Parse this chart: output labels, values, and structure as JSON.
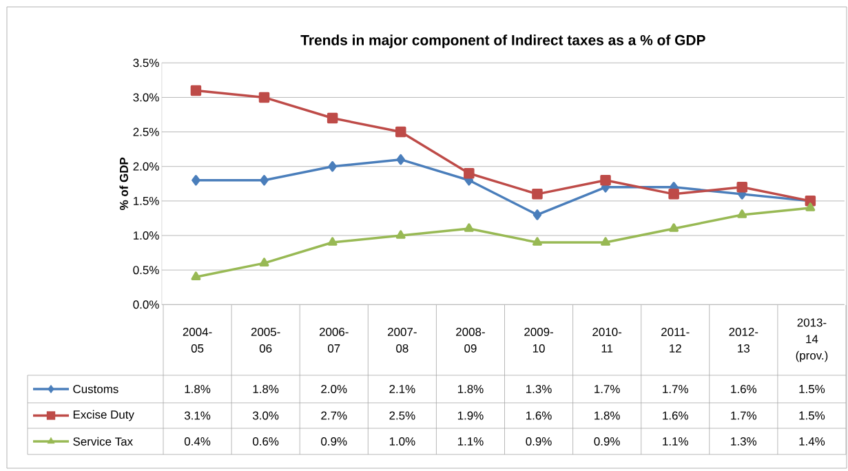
{
  "chart_data": {
    "type": "line",
    "title": "Trends in major component of Indirect taxes as a % of GDP",
    "ylabel": "% of GDP",
    "categories": [
      "2004-05",
      "2005-06",
      "2006-07",
      "2007-08",
      "2008-09",
      "2009-10",
      "2010-11",
      "2011-12",
      "2012-13",
      "2013-14 (prov.)"
    ],
    "series": [
      {
        "name": "Customs",
        "color": "#4a7ebb",
        "marker": "diamond",
        "values": [
          1.8,
          1.8,
          2.0,
          2.1,
          1.8,
          1.3,
          1.7,
          1.7,
          1.6,
          1.5
        ],
        "value_labels": [
          "1.8%",
          "1.8%",
          "2.0%",
          "2.1%",
          "1.8%",
          "1.3%",
          "1.7%",
          "1.7%",
          "1.6%",
          "1.5%"
        ]
      },
      {
        "name": "Excise Duty",
        "color": "#be4b48",
        "marker": "square",
        "values": [
          3.1,
          3.0,
          2.7,
          2.5,
          1.9,
          1.6,
          1.8,
          1.6,
          1.7,
          1.5
        ],
        "value_labels": [
          "3.1%",
          "3.0%",
          "2.7%",
          "2.5%",
          "1.9%",
          "1.6%",
          "1.8%",
          "1.6%",
          "1.7%",
          "1.5%"
        ]
      },
      {
        "name": "Service Tax",
        "color": "#98b954",
        "marker": "triangle",
        "values": [
          0.4,
          0.6,
          0.9,
          1.0,
          1.1,
          0.9,
          0.9,
          1.1,
          1.3,
          1.4
        ],
        "value_labels": [
          "0.4%",
          "0.6%",
          "0.9%",
          "1.0%",
          "1.1%",
          "0.9%",
          "0.9%",
          "1.1%",
          "1.3%",
          "1.4%"
        ]
      }
    ],
    "ylim": [
      0,
      3.5
    ],
    "yticks": [
      {
        "value": 0,
        "label": "0.0%"
      },
      {
        "value": 0.5,
        "label": "0.5%"
      },
      {
        "value": 1,
        "label": "1.0%"
      },
      {
        "value": 1.5,
        "label": "1.5%"
      },
      {
        "value": 2,
        "label": "2.0%"
      },
      {
        "value": 2.5,
        "label": "2.5%"
      },
      {
        "value": 3,
        "label": "3.0%"
      },
      {
        "value": 3.5,
        "label": "3.5%"
      }
    ],
    "grid": "y",
    "legend": "bottom left",
    "line_style": "solid"
  }
}
